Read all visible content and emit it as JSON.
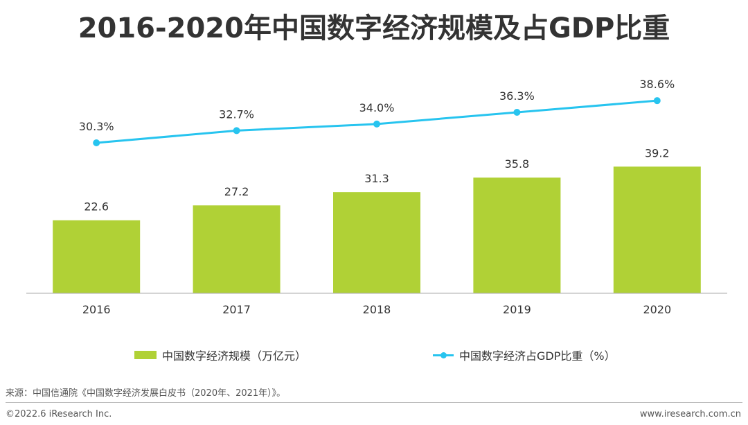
{
  "title": "2016-2020年中国数字经济规模及占GDP比重",
  "legend": {
    "bar_label": "中国数字经济规模（万亿元）",
    "line_label": "中国数字经济占GDP比重（%）"
  },
  "footer": {
    "source": "来源：中国信通院《中国数字经济发展白皮书（2020年、2021年）》。",
    "copyright": "©2022.6 iResearch Inc.",
    "website": "www.iresearch.com.cn"
  },
  "colors": {
    "bar": "#b0d136",
    "line": "#27c4ef",
    "axis": "#aaaaaa"
  },
  "chart_data": {
    "type": "bar",
    "categories": [
      "2016",
      "2017",
      "2018",
      "2019",
      "2020"
    ],
    "series": [
      {
        "name": "中国数字经济规模（万亿元）",
        "type": "bar",
        "values": [
          22.6,
          27.2,
          31.3,
          35.8,
          39.2
        ],
        "labels": [
          "22.6",
          "27.2",
          "31.3",
          "35.8",
          "39.2"
        ]
      },
      {
        "name": "中国数字经济占GDP比重（%）",
        "type": "line",
        "values": [
          30.3,
          32.7,
          34.0,
          36.3,
          38.6
        ],
        "labels": [
          "30.3%",
          "32.7%",
          "34.0%",
          "36.3%",
          "38.6%"
        ]
      }
    ],
    "legend_position": "bottom",
    "grid": false
  }
}
